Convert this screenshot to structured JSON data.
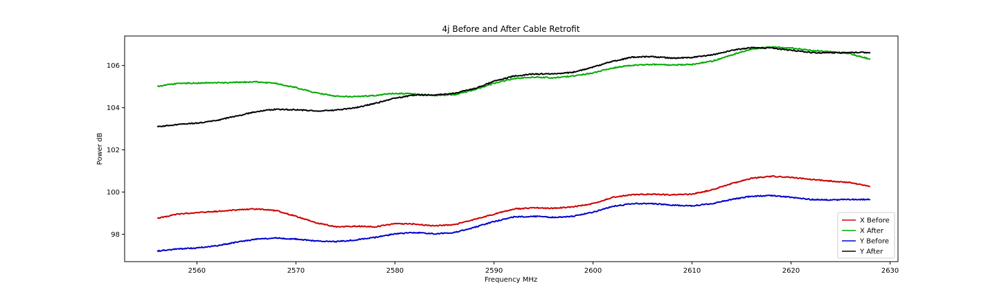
{
  "chart_data": {
    "type": "line",
    "title": "4j Before and After Cable Retrofit",
    "xlabel": "Frequency MHz",
    "ylabel": "Power dB",
    "xlim": [
      2552.7,
      2630.8
    ],
    "ylim": [
      96.7,
      107.4
    ],
    "xticks": [
      2560,
      2570,
      2580,
      2590,
      2600,
      2610,
      2620,
      2630
    ],
    "yticks": [
      98,
      100,
      102,
      104,
      106
    ],
    "grid": false,
    "legend_position": "lower-right",
    "series": [
      {
        "name": "X Before",
        "color": "#cc0000",
        "x": [
          2556,
          2558,
          2560,
          2562,
          2564,
          2566,
          2568,
          2570,
          2572,
          2574,
          2576,
          2578,
          2580,
          2582,
          2584,
          2586,
          2588,
          2590,
          2592,
          2594,
          2596,
          2598,
          2600,
          2602,
          2604,
          2606,
          2608,
          2610,
          2612,
          2614,
          2616,
          2618,
          2620,
          2622,
          2624,
          2626,
          2628
        ],
        "y": [
          98.75,
          98.95,
          99.03,
          99.08,
          99.15,
          99.2,
          99.12,
          98.85,
          98.55,
          98.35,
          98.38,
          98.35,
          98.5,
          98.48,
          98.4,
          98.45,
          98.7,
          98.95,
          99.2,
          99.25,
          99.23,
          99.3,
          99.45,
          99.75,
          99.88,
          99.9,
          99.86,
          99.9,
          100.1,
          100.4,
          100.65,
          100.75,
          100.7,
          100.6,
          100.52,
          100.45,
          100.25
        ]
      },
      {
        "name": "X After",
        "color": "#00aa00",
        "x": [
          2556,
          2558,
          2560,
          2562,
          2564,
          2566,
          2568,
          2570,
          2572,
          2574,
          2576,
          2578,
          2580,
          2582,
          2584,
          2586,
          2588,
          2590,
          2592,
          2594,
          2596,
          2598,
          2600,
          2602,
          2604,
          2606,
          2608,
          2610,
          2612,
          2614,
          2616,
          2618,
          2620,
          2622,
          2624,
          2626,
          2628
        ],
        "y": [
          105.0,
          105.15,
          105.17,
          105.18,
          105.2,
          105.23,
          105.15,
          104.95,
          104.7,
          104.55,
          104.52,
          104.58,
          104.68,
          104.65,
          104.58,
          104.62,
          104.85,
          105.15,
          105.38,
          105.45,
          105.42,
          105.5,
          105.65,
          105.88,
          106.02,
          106.05,
          106.02,
          106.05,
          106.2,
          106.5,
          106.78,
          106.88,
          106.83,
          106.72,
          106.65,
          106.55,
          106.3
        ]
      },
      {
        "name": "Y Before",
        "color": "#0000cc",
        "x": [
          2556,
          2558,
          2560,
          2562,
          2564,
          2566,
          2568,
          2570,
          2572,
          2574,
          2576,
          2578,
          2580,
          2582,
          2584,
          2586,
          2588,
          2590,
          2592,
          2594,
          2596,
          2598,
          2600,
          2602,
          2604,
          2606,
          2608,
          2610,
          2612,
          2614,
          2616,
          2618,
          2620,
          2622,
          2624,
          2626,
          2628
        ],
        "y": [
          97.2,
          97.3,
          97.35,
          97.45,
          97.62,
          97.77,
          97.82,
          97.77,
          97.68,
          97.65,
          97.73,
          97.85,
          98.02,
          98.08,
          98.02,
          98.08,
          98.32,
          98.6,
          98.82,
          98.85,
          98.8,
          98.85,
          99.05,
          99.32,
          99.45,
          99.45,
          99.38,
          99.35,
          99.45,
          99.65,
          99.8,
          99.83,
          99.75,
          99.65,
          99.62,
          99.65,
          99.65
        ]
      },
      {
        "name": "Y After",
        "color": "#000000",
        "x": [
          2556,
          2558,
          2560,
          2562,
          2564,
          2566,
          2568,
          2570,
          2572,
          2574,
          2576,
          2578,
          2580,
          2582,
          2584,
          2586,
          2588,
          2590,
          2592,
          2594,
          2596,
          2598,
          2600,
          2602,
          2604,
          2606,
          2608,
          2610,
          2612,
          2614,
          2616,
          2618,
          2620,
          2622,
          2624,
          2626,
          2628
        ],
        "y": [
          103.1,
          103.2,
          103.27,
          103.4,
          103.6,
          103.82,
          103.93,
          103.9,
          103.85,
          103.88,
          104.0,
          104.2,
          104.45,
          104.6,
          104.6,
          104.68,
          104.9,
          105.25,
          105.5,
          105.6,
          105.6,
          105.68,
          105.92,
          106.2,
          106.4,
          106.42,
          106.35,
          106.38,
          106.5,
          106.72,
          106.85,
          106.83,
          106.72,
          106.62,
          106.6,
          106.62,
          106.62
        ]
      }
    ]
  }
}
